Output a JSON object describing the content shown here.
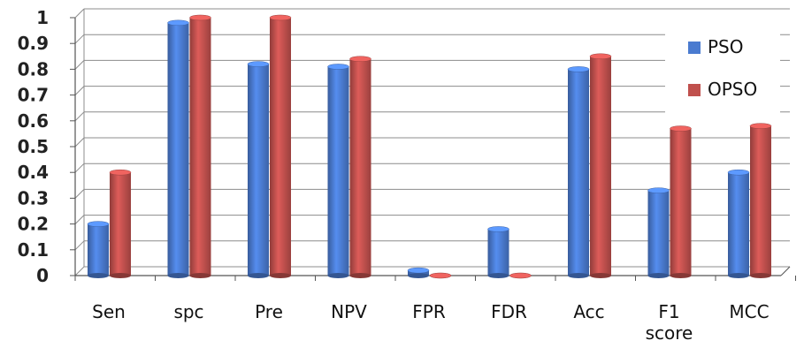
{
  "chart_data": {
    "type": "bar",
    "categories": [
      "Sen",
      "spc",
      "Pre",
      "NPV",
      "FPR",
      "FDR",
      "Acc",
      "F1 score",
      "MCC"
    ],
    "category_lines": [
      [
        "Sen"
      ],
      [
        "spc"
      ],
      [
        "Pre"
      ],
      [
        "NPV"
      ],
      [
        "FPR"
      ],
      [
        "FDR"
      ],
      [
        "Acc"
      ],
      [
        "F1",
        "score"
      ],
      [
        "MCC"
      ]
    ],
    "series": [
      {
        "name": "PSO",
        "color": "#4a7bd0",
        "values": [
          0.2,
          0.98,
          0.82,
          0.81,
          0.02,
          0.18,
          0.8,
          0.33,
          0.4
        ]
      },
      {
        "name": "OPSO",
        "color": "#c0504d",
        "values": [
          0.4,
          1.0,
          1.0,
          0.84,
          0.0,
          0.0,
          0.85,
          0.57,
          0.58
        ]
      }
    ],
    "yticks": [
      "0",
      "0.1",
      "0.2",
      "0.3",
      "0.4",
      "0.5",
      "0.6",
      "0.7",
      "0.8",
      "0.9",
      "1"
    ],
    "ylim": [
      0,
      1
    ],
    "grid": true,
    "legend_position": "top-right",
    "title": "",
    "xlabel": "",
    "ylabel": ""
  }
}
